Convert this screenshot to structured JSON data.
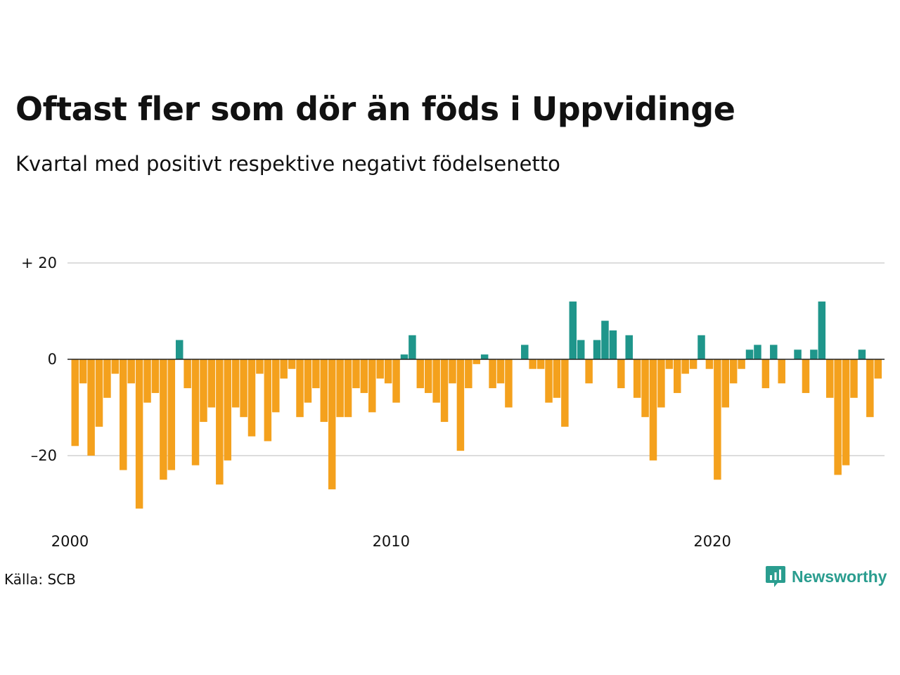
{
  "title": "Oftast fler som dör än föds i Uppvidinge",
  "subtitle": "Kvartal med positivt respektive negativt födelsenetto",
  "source": "Källa: SCB",
  "brand": {
    "name": "Newsworthy",
    "icon": "newsworthy-logo-icon"
  },
  "colors": {
    "positive": "#1f968b",
    "negative": "#f4a11d",
    "grid": "#dddddd",
    "zero_line": "#222222",
    "brand": "#2a9d8f"
  },
  "chart_data": {
    "type": "bar",
    "title": "Oftast fler som dör än föds i Uppvidinge",
    "subtitle": "Kvartal med positivt respektive negativt födelsenetto",
    "x_start": "2000-Q1",
    "x_ticks": [
      {
        "label": "2000",
        "year": 2000
      },
      {
        "label": "2010",
        "year": 2010
      },
      {
        "label": "2020",
        "year": 2020
      }
    ],
    "y_ticks": [
      {
        "label": "+ 20",
        "value": 20
      },
      {
        "label": "0",
        "value": 0
      },
      {
        "label": "–20",
        "value": -20
      }
    ],
    "ylim": [
      -31,
      20
    ],
    "grid": true,
    "values": [
      -18,
      -5,
      -20,
      -14,
      -8,
      -3,
      -23,
      -5,
      -31,
      -9,
      -7,
      -25,
      -23,
      4,
      -6,
      -22,
      -13,
      -10,
      -26,
      -21,
      -10,
      -12,
      -16,
      -3,
      -17,
      -11,
      -4,
      -2,
      -12,
      -9,
      -6,
      -13,
      -27,
      -12,
      -12,
      -6,
      -7,
      -11,
      -4,
      -5,
      -9,
      1,
      5,
      -6,
      -7,
      -9,
      -13,
      -5,
      -19,
      -6,
      -1,
      1,
      -6,
      -5,
      -10,
      0,
      3,
      -2,
      -2,
      -9,
      -8,
      -14,
      12,
      4,
      -5,
      4,
      8,
      6,
      -6,
      5,
      -8,
      -12,
      -21,
      -10,
      -2,
      -7,
      -3,
      -2,
      5,
      -2,
      -25,
      -10,
      -5,
      -2,
      2,
      3,
      -6,
      3,
      -5,
      0,
      2,
      -7,
      2,
      12,
      -8,
      -24,
      -22,
      -8,
      2,
      -12,
      -4
    ]
  }
}
